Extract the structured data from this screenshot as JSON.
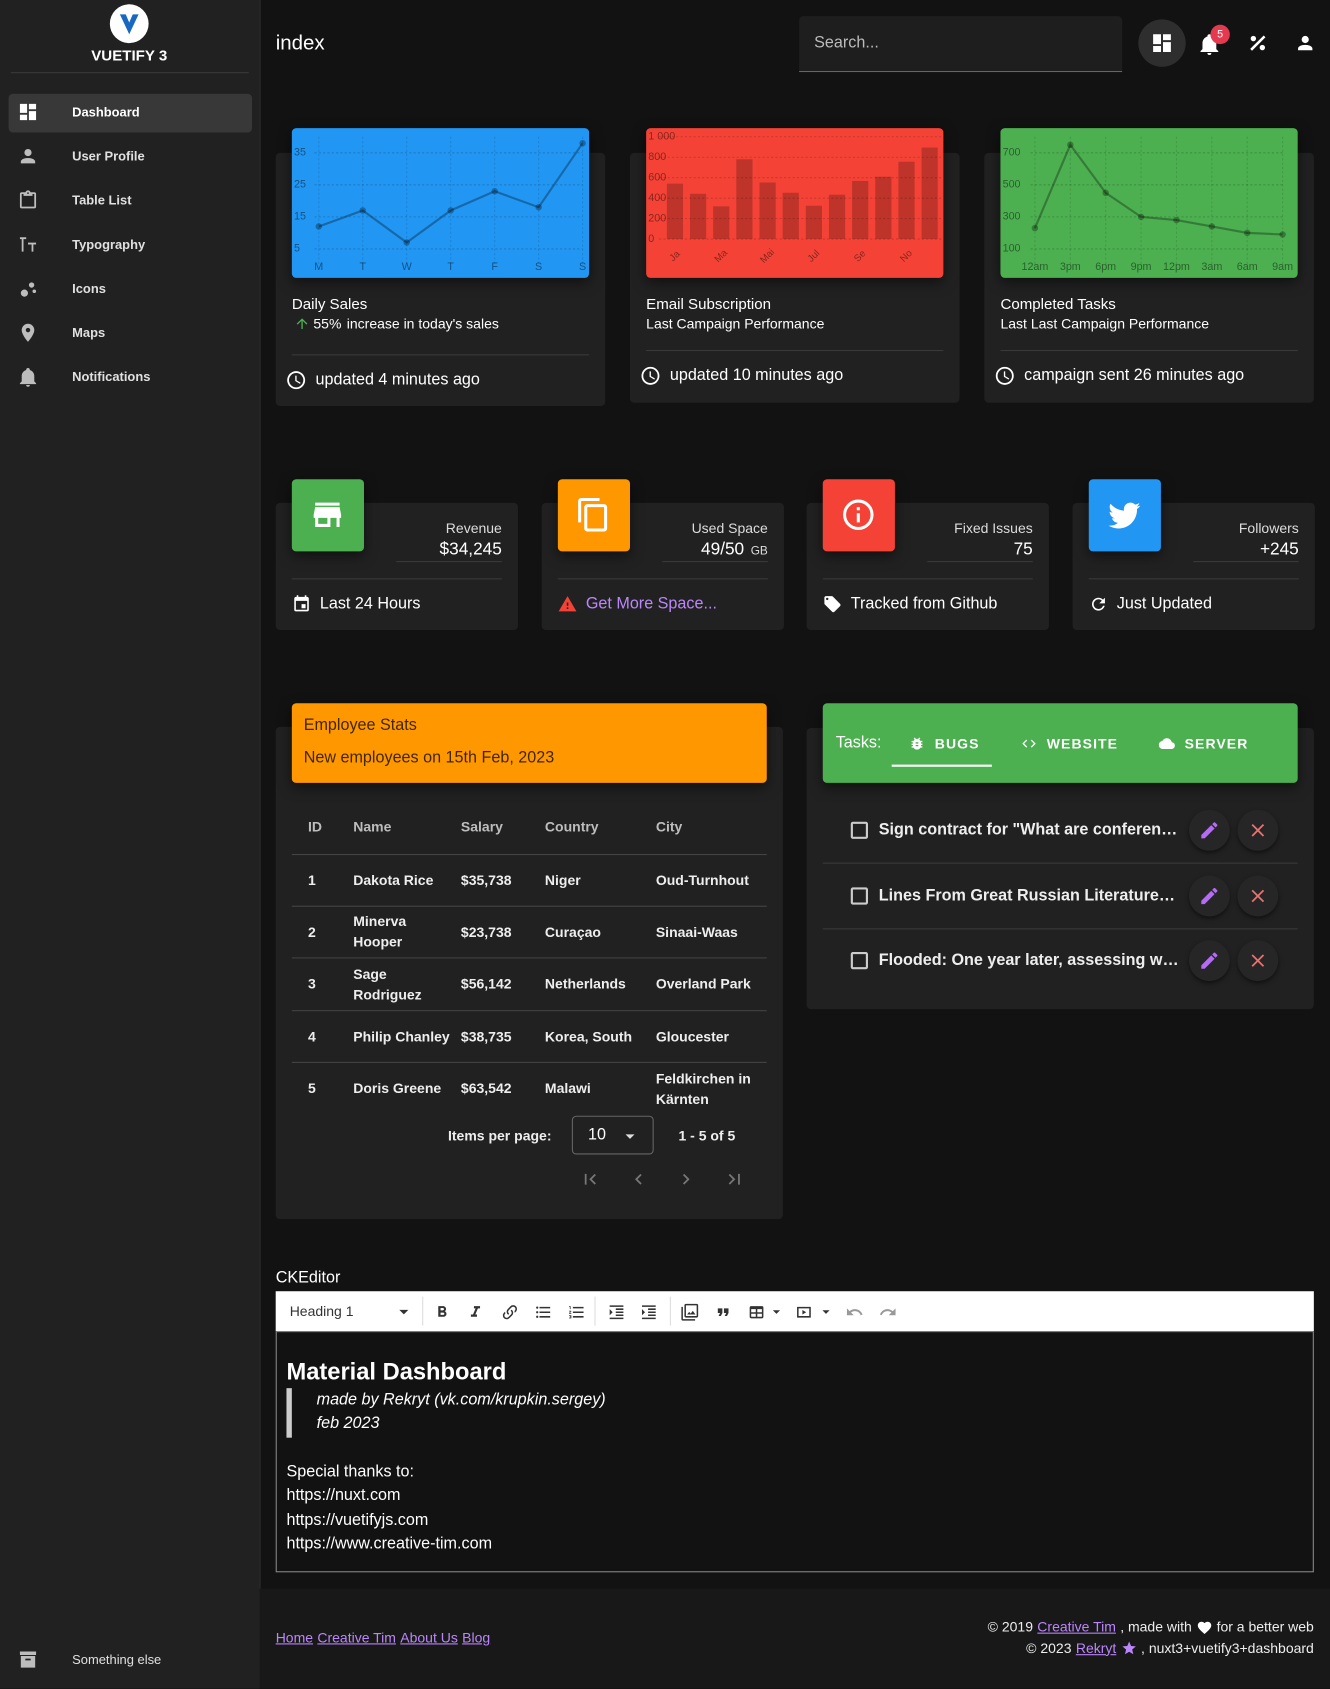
{
  "sidebar": {
    "brand": "VUETIFY 3",
    "items": [
      "Dashboard",
      "User Profile",
      "Table List",
      "Typography",
      "Icons",
      "Maps",
      "Notifications"
    ],
    "bottom_item": "Something else"
  },
  "header": {
    "title": "index",
    "search_placeholder": "Search...",
    "notifications": 5
  },
  "chart_cards": [
    {
      "type": "line",
      "color": "#2196f3",
      "categories": [
        "M",
        "T",
        "W",
        "T",
        "F",
        "S",
        "S"
      ],
      "values": [
        12,
        17,
        7,
        17,
        23,
        18,
        38
      ],
      "ylim": [
        0,
        40
      ],
      "yticks": [
        5,
        15,
        25,
        35
      ],
      "title": "Daily Sales",
      "change": "55%",
      "change_text": "increase in today's sales",
      "footer": "updated 4 minutes ago"
    },
    {
      "type": "bar",
      "color": "#f44336",
      "categories": [
        "Ja",
        null,
        "Ma",
        null,
        "Mai",
        null,
        "Jul",
        null,
        "Se",
        null,
        "No",
        null
      ],
      "values": [
        542,
        443,
        320,
        780,
        553,
        453,
        326,
        434,
        568,
        610,
        756,
        895
      ],
      "ylim": [
        0,
        1000
      ],
      "yticks": [
        0,
        200,
        400,
        600,
        800,
        {
          "value": 1000,
          "label": "1 000"
        }
      ],
      "title": "Email Subscription",
      "subtitle": "Last Campaign Performance",
      "footer": "updated 10 minutes ago"
    },
    {
      "type": "line",
      "color": "#4caf50",
      "categories": [
        "12am",
        "3pm",
        "6pm",
        "9pm",
        "12pm",
        "3am",
        "6am",
        "9am"
      ],
      "values": [
        230,
        750,
        450,
        300,
        280,
        240,
        200,
        190
      ],
      "ylim": [
        0,
        800
      ],
      "yticks": [
        100,
        300,
        500,
        700
      ],
      "title": "Completed Tasks",
      "subtitle": "Last Last Campaign Performance",
      "footer": "campaign sent 26 minutes ago"
    }
  ],
  "stat_cards": [
    {
      "color": "#4caf50",
      "title": "Revenue",
      "value": "$34,245",
      "footer": "Last 24 Hours"
    },
    {
      "color": "#ff9800",
      "title": "Used Space",
      "value": "49/50",
      "unit": "GB",
      "footer": "Get More Space..."
    },
    {
      "color": "#f44336",
      "title": "Fixed Issues",
      "value": 75,
      "footer": "Tracked from Github"
    },
    {
      "color": "#2196f3",
      "title": "Followers",
      "value": "+245",
      "footer": "Just Updated"
    }
  ],
  "employee_stats": {
    "title": "Employee Stats",
    "subtitle": "New employees on 15th Feb, 2023",
    "columns": [
      "ID",
      "Name",
      "Salary",
      "Country",
      "City"
    ],
    "rows": [
      [
        1,
        "Dakota Rice",
        "$35,738",
        "Niger",
        "Oud-Turnhout"
      ],
      [
        2,
        "Minerva Hooper",
        "$23,738",
        "Curaçao",
        "Sinaai-Waas"
      ],
      [
        3,
        "Sage Rodriguez",
        "$56,142",
        "Netherlands",
        "Overland Park"
      ],
      [
        4,
        "Philip Chanley",
        "$38,735",
        "Korea, South",
        "Gloucester"
      ],
      [
        5,
        "Doris Greene",
        "$63,542",
        "Malawi",
        "Feldkirchen in Kärnten"
      ]
    ],
    "items_per_page_label": "Items per page:",
    "items_per_page": 10,
    "range": "1 - 5 of 5"
  },
  "tasks": {
    "label": "Tasks:",
    "tabs": [
      "BUGS",
      "WEBSITE",
      "SERVER"
    ],
    "items": [
      "Sign contract for \"What are conference organizers afraid of?\"",
      "Lines From Great Russian Literature? Or E-mails From My Boss?",
      "Flooded: One year later, assessing what was lost and what was found when a ravaging rain swept through metro Detroit"
    ]
  },
  "editor": {
    "label": "CKEditor",
    "heading_select": "Heading 1",
    "heading": "Material Dashboard",
    "quote": [
      "made by Rekryt (vk.com/krupkin.sergey)",
      "feb 2023"
    ],
    "paragraph": "Special thanks to:",
    "links": [
      "https://nuxt.com",
      "https://vuetifyjs.com",
      "https://www.creative-tim.com"
    ]
  },
  "footer": {
    "links": [
      "Home",
      "Creative Tim",
      "About Us",
      "Blog"
    ],
    "credits": [
      {
        "prefix": "© 2019",
        "link": "Creative Tim",
        "text": ", made with",
        "suffix": "for a better web"
      },
      {
        "prefix": "© 2023",
        "link": "Rekryt",
        "text": ", nuxt3+vuetify3+dashboard"
      }
    ]
  }
}
